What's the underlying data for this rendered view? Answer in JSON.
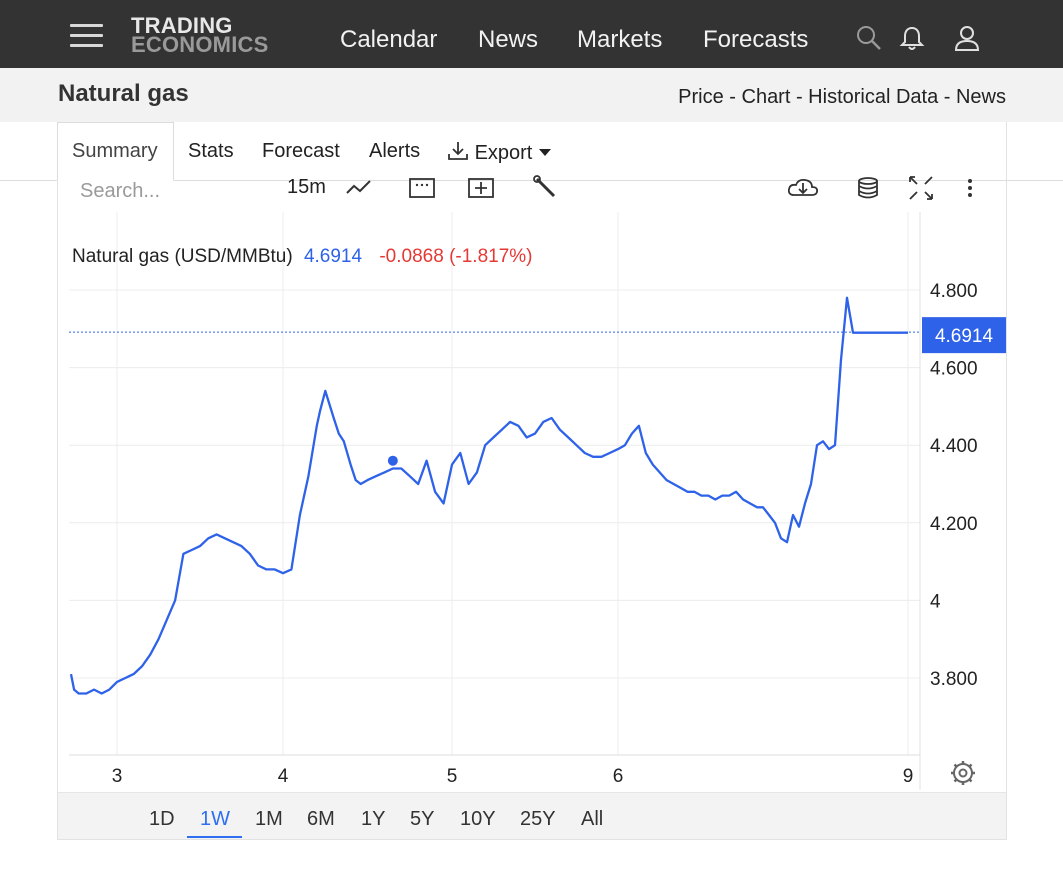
{
  "header": {
    "logo_line1": "TRADING",
    "logo_line2": "ECONOMICS",
    "nav": [
      "Calendar",
      "News",
      "Markets",
      "Forecasts"
    ],
    "icons": [
      "menu-icon",
      "search-icon",
      "bell-icon",
      "user-icon"
    ]
  },
  "page": {
    "title": "Natural gas",
    "subnav": "Price - Chart - Historical Data - News"
  },
  "tabs": {
    "summary": "Summary",
    "stats": "Stats",
    "forecast": "Forecast",
    "alerts": "Alerts",
    "export": "Export"
  },
  "toolbar": {
    "search_placeholder": "Search...",
    "interval": "15m",
    "icons": [
      "line-chart-icon",
      "calendar-icon",
      "add-compare-icon",
      "wrench-icon",
      "download-cloud-icon",
      "database-icon",
      "fullscreen-icon",
      "more-vert-icon"
    ]
  },
  "legend": {
    "name": "Natural gas (USD/MMBtu)",
    "price": "4.6914",
    "change": "-0.0868 (-1.817%)"
  },
  "last_price_label": "4.6914",
  "range_buttons": [
    "1D",
    "1W",
    "1M",
    "6M",
    "1Y",
    "5Y",
    "10Y",
    "25Y",
    "All"
  ],
  "range_active": "1W",
  "colors": {
    "line": "#2e62e8",
    "price_tag": "#2e62e8",
    "negative": "#e53935",
    "topbar": "#333333"
  },
  "chart_data": {
    "type": "line",
    "xticks": [
      "3",
      "4",
      "5",
      "6",
      "9"
    ],
    "yticks": [
      "3.800",
      "4",
      "4.200",
      "4.400",
      "4.600",
      "4.800"
    ],
    "ylim": [
      3.62,
      4.85
    ],
    "series": [
      {
        "x": [
          2.7,
          2.72,
          2.75,
          2.8,
          2.85,
          2.9,
          2.95,
          3.0,
          3.05,
          3.1,
          3.15,
          3.2,
          3.25,
          3.3,
          3.35,
          3.4,
          3.45,
          3.5,
          3.55,
          3.6,
          3.65,
          3.7,
          3.75,
          3.8,
          3.85,
          3.9,
          3.95,
          4.0,
          4.05,
          4.1,
          4.15,
          4.2,
          4.22,
          4.25,
          4.3,
          4.33,
          4.36,
          4.4,
          4.43,
          4.46,
          4.5,
          4.55,
          4.6,
          4.65,
          4.7,
          4.75,
          4.8,
          4.85,
          4.9,
          4.95,
          5.0,
          5.05,
          5.1,
          5.15,
          5.2,
          5.25,
          5.3,
          5.35,
          5.4,
          5.45,
          5.5,
          5.55,
          5.6,
          5.65,
          5.7,
          5.75,
          5.8,
          5.85,
          5.9,
          5.95,
          6.0,
          6.05,
          6.1,
          6.15,
          6.2,
          6.25,
          6.3,
          6.35,
          6.4,
          6.45,
          6.5,
          6.55,
          6.6,
          6.65,
          6.7,
          6.75,
          6.8,
          6.85,
          6.9,
          6.95,
          7.0,
          7.05,
          7.1,
          7.15,
          7.2,
          7.25,
          7.3,
          7.35,
          7.4,
          7.45,
          7.5,
          7.55,
          7.6,
          7.65,
          7.7,
          7.75,
          7.8,
          7.85,
          7.9,
          7.95,
          8.0,
          8.05,
          8.1,
          8.15,
          8.2
        ],
        "y": [
          3.81,
          3.77,
          3.76,
          3.76,
          3.77,
          3.76,
          3.77,
          3.79,
          3.8,
          3.81,
          3.83,
          3.86,
          3.9,
          3.95,
          4.0,
          4.12,
          4.13,
          4.14,
          4.16,
          4.17,
          4.16,
          4.15,
          4.14,
          4.12,
          4.09,
          4.08,
          4.08,
          4.07,
          4.08,
          4.22,
          4.32,
          4.45,
          4.49,
          4.54,
          4.47,
          4.43,
          4.41,
          4.35,
          4.31,
          4.3,
          4.31,
          4.32,
          4.33,
          4.34,
          4.34,
          4.32,
          4.3,
          4.36,
          4.28,
          4.25,
          4.35,
          4.38,
          4.3,
          4.33,
          4.4,
          4.42,
          4.44,
          4.46,
          4.45,
          4.42,
          4.43,
          4.46,
          4.47,
          4.44,
          4.42,
          4.4,
          4.38,
          4.37,
          4.37,
          4.38,
          4.39,
          4.4,
          4.43,
          4.45,
          4.38,
          4.35,
          4.33,
          4.31,
          4.3,
          4.29,
          4.28,
          4.28,
          4.27,
          4.27,
          4.26,
          4.27,
          4.27,
          4.28,
          4.26,
          4.25,
          4.24,
          4.24,
          4.22,
          4.2,
          4.16,
          4.15,
          4.22,
          4.19,
          4.25,
          4.3,
          4.4,
          4.41,
          4.39,
          4.4,
          4.62,
          4.78,
          4.69,
          4.69,
          4.69,
          4.69,
          4.69,
          4.69,
          4.69,
          4.69,
          4.69
        ]
      }
    ],
    "marker": {
      "x": 4.65,
      "y": 4.36
    },
    "last_price": 4.6914,
    "grid": true
  }
}
